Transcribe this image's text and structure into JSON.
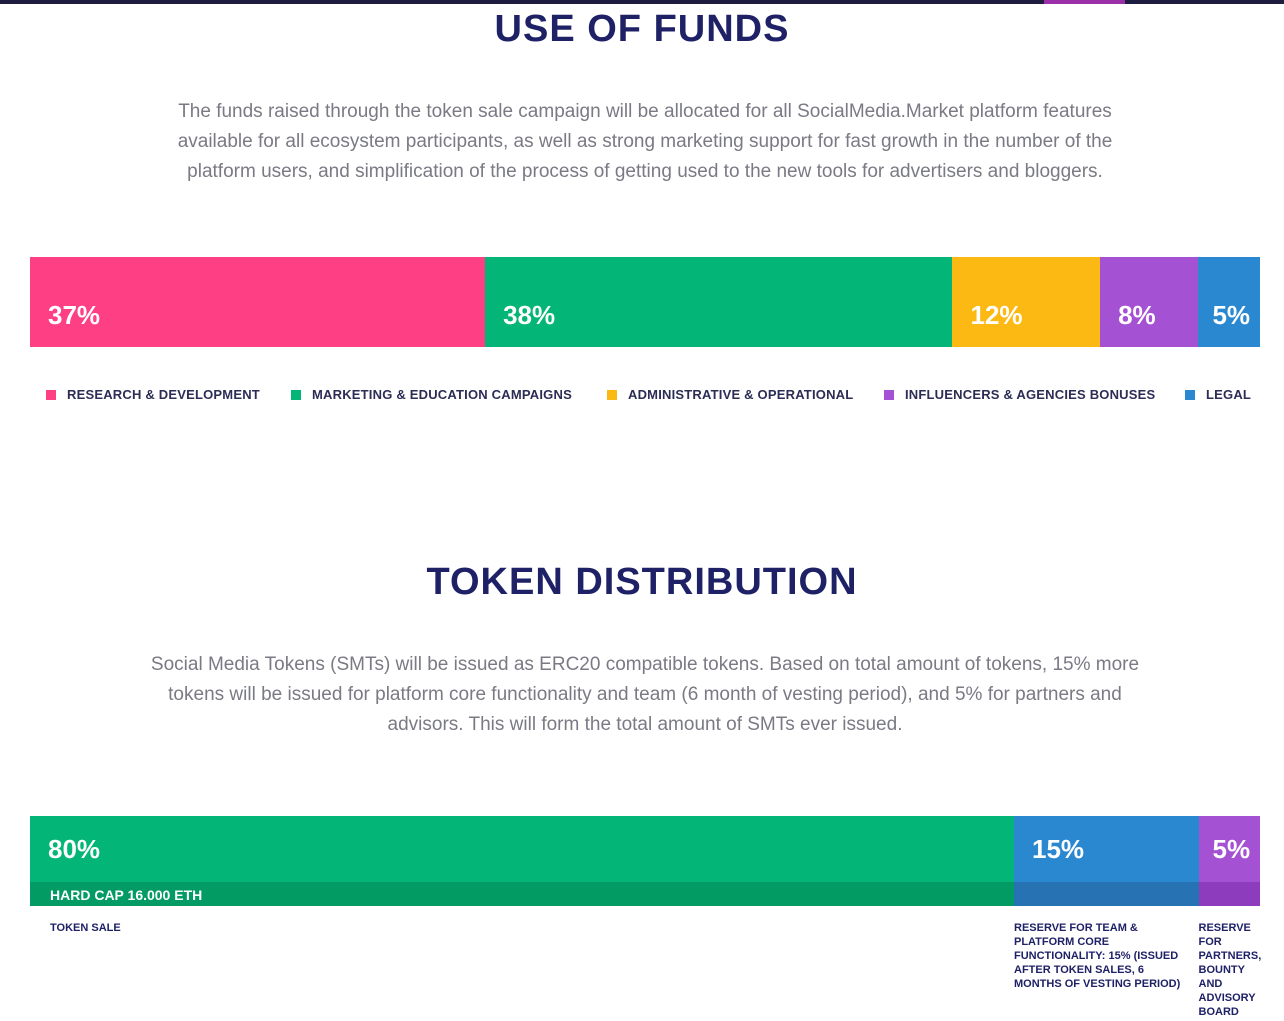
{
  "funds": {
    "title": "USE OF FUNDS",
    "description": "The funds raised through the token sale campaign will be allocated for all SocialMedia.Market platform features available for all ecosystem participants, as well as strong marketing support for fast growth in the number of the platform users, and simplification of the process of getting used to the new tools for advertisers and bloggers.",
    "segments": [
      {
        "pct_label": "37%",
        "value": 37,
        "color": "#ff3f83",
        "legend": "RESEARCH & DEVELOPMENT"
      },
      {
        "pct_label": "38%",
        "value": 38,
        "color": "#03b576",
        "legend": "MARKETING & EDUCATION CAMPAIGNS"
      },
      {
        "pct_label": "12%",
        "value": 12,
        "color": "#fdb913",
        "legend": "ADMINISTRATIVE & OPERATIONAL"
      },
      {
        "pct_label": "8%",
        "value": 8,
        "color": "#a451d4",
        "legend": "INFLUENCERS & AGENCIES BONUSES"
      },
      {
        "pct_label": "5%",
        "value": 5,
        "color": "#2a88d0",
        "legend": "LEGAL"
      }
    ]
  },
  "tokens": {
    "title": "TOKEN DISTRIBUTION",
    "description": "Social Media Tokens (SMTs) will be issued as ERC20 compatible tokens. Based on total amount of tokens, 15% more tokens will be issued for platform core functionality and team (6 month of vesting period), and 5% for partners and advisors. This will form the total amount of SMTs ever issued.",
    "segments": [
      {
        "pct_label": "80%",
        "value": 80,
        "color": "#03b576",
        "sub_color": "#029b63",
        "sub_label": "HARD CAP 16.000 ETH",
        "caption": "TOKEN SALE"
      },
      {
        "pct_label": "15%",
        "value": 15,
        "color": "#2a88d0",
        "sub_color": "#2672b3",
        "caption": "RESERVE FOR TEAM & PLATFORM CORE FUNCTIONALITY: 15% (ISSUED AFTER TOKEN SALES, 6 MONTHS OF VESTING PERIOD)"
      },
      {
        "pct_label": "5%",
        "value": 5,
        "color": "#a451d4",
        "sub_color": "#8c3cbd",
        "caption": "RESERVE FOR PARTNERS, BOUNTY AND ADVISORY BOARD"
      }
    ]
  },
  "chart_data": [
    {
      "type": "bar",
      "title": "USE OF FUNDS",
      "categories": [
        "RESEARCH & DEVELOPMENT",
        "MARKETING & EDUCATION CAMPAIGNS",
        "ADMINISTRATIVE & OPERATIONAL",
        "INFLUENCERS & AGENCIES BONUSES",
        "LEGAL"
      ],
      "values": [
        37,
        38,
        12,
        8,
        5
      ],
      "legend": "bottom"
    },
    {
      "type": "bar",
      "title": "TOKEN DISTRIBUTION",
      "categories": [
        "TOKEN SALE",
        "RESERVE FOR TEAM & PLATFORM CORE FUNCTIONALITY: 15% (ISSUED AFTER TOKEN SALES, 6 MONTHS OF VESTING PERIOD)",
        "RESERVE FOR PARTNERS, BOUNTY AND ADVISORY BOARD"
      ],
      "values": [
        80,
        15,
        5
      ]
    }
  ]
}
